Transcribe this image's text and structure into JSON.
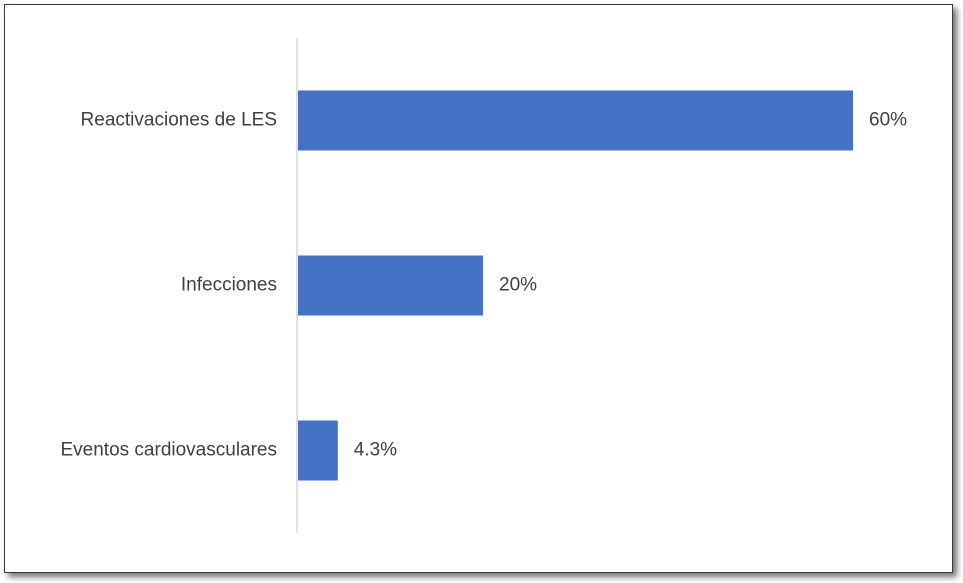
{
  "chart_data": {
    "type": "bar",
    "orientation": "horizontal",
    "categories": [
      "Reactivaciones de LES",
      "Infecciones",
      "Eventos cardiovasculares"
    ],
    "values": [
      60,
      20,
      4.3
    ],
    "value_labels": [
      "60%",
      "20%",
      "4.3%"
    ],
    "unit": "%",
    "title": "",
    "xlabel": "",
    "ylabel": "",
    "xlim": [
      0,
      70
    ],
    "grid": false,
    "legend": "none",
    "bar_color": "#4472C4",
    "axis_color": "#D9D9D9",
    "text_color": "#404040"
  }
}
